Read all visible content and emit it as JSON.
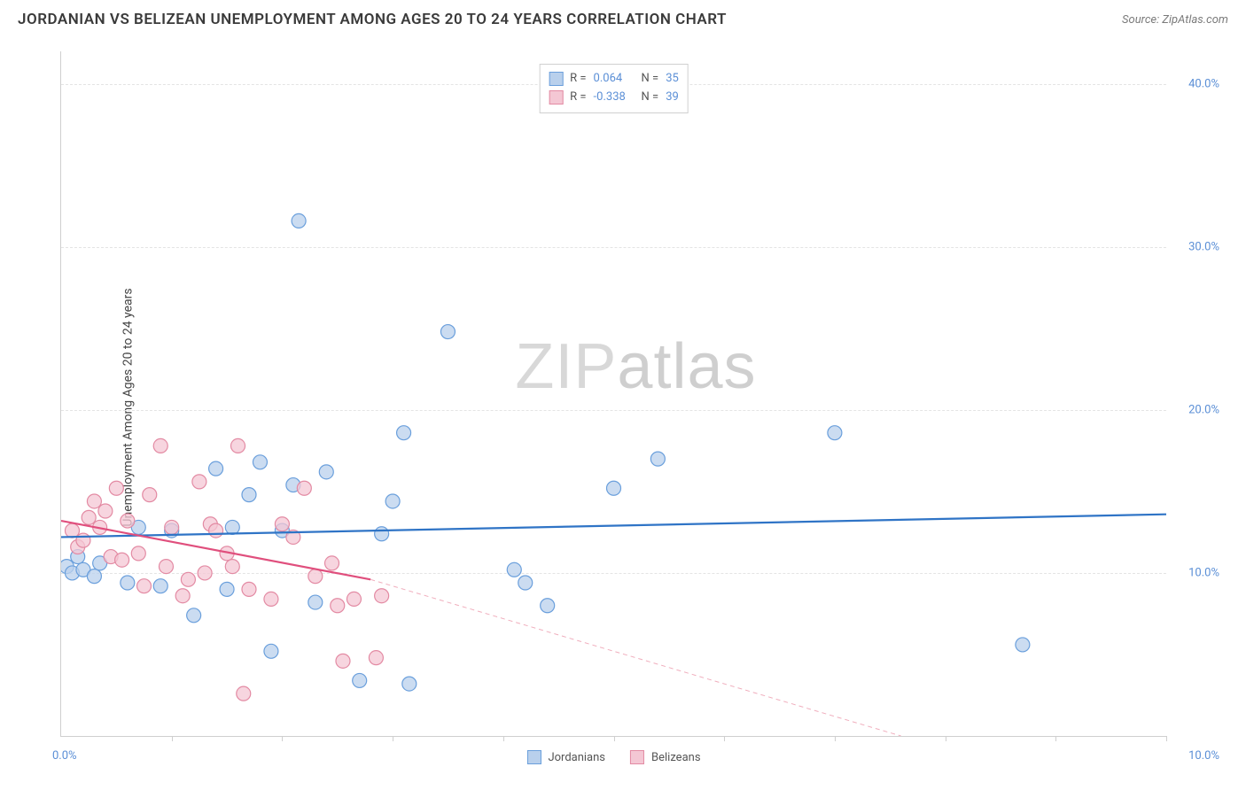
{
  "header": {
    "title": "JORDANIAN VS BELIZEAN UNEMPLOYMENT AMONG AGES 20 TO 24 YEARS CORRELATION CHART",
    "source": "Source: ZipAtlas.com"
  },
  "chart": {
    "type": "scatter",
    "ylabel": "Unemployment Among Ages 20 to 24 years",
    "watermark": "ZIPatlas",
    "xlim": [
      0,
      10
    ],
    "ylim": [
      0,
      42
    ],
    "x_tick_positions": [
      0,
      1,
      2,
      3,
      4,
      5,
      6,
      7,
      8,
      9,
      10
    ],
    "x_tick_labels_shown": {
      "0": "0.0%",
      "10": "10.0%"
    },
    "y_grid_positions": [
      10,
      20,
      30,
      40
    ],
    "y_tick_labels": {
      "10": "10.0%",
      "20": "20.0%",
      "30": "30.0%",
      "40": "40.0%"
    },
    "background_color": "#ffffff",
    "grid_color": "#e4e4e4",
    "axis_color": "#cfcfcf",
    "marker_radius": 8,
    "marker_stroke_width": 1.2,
    "series": [
      {
        "name": "Jordanians",
        "fill_color": "#b9d0ec",
        "stroke_color": "#6a9fdc",
        "swatch_fill": "#b9d0ec",
        "swatch_border": "#6a9fdc",
        "correlation_r": "0.064",
        "correlation_n": "35",
        "regression": {
          "x1": 0,
          "y1": 12.2,
          "x2": 10,
          "y2": 13.6,
          "color": "#2f74c6",
          "width": 2.2,
          "dash": "none"
        },
        "points": [
          [
            0.05,
            10.4
          ],
          [
            0.1,
            10.0
          ],
          [
            0.15,
            11.0
          ],
          [
            0.2,
            10.2
          ],
          [
            0.3,
            9.8
          ],
          [
            0.35,
            10.6
          ],
          [
            0.6,
            9.4
          ],
          [
            0.7,
            12.8
          ],
          [
            0.9,
            9.2
          ],
          [
            1.0,
            12.6
          ],
          [
            1.2,
            7.4
          ],
          [
            1.4,
            16.4
          ],
          [
            1.5,
            9.0
          ],
          [
            1.55,
            12.8
          ],
          [
            1.7,
            14.8
          ],
          [
            1.8,
            16.8
          ],
          [
            1.9,
            5.2
          ],
          [
            2.0,
            12.6
          ],
          [
            2.1,
            15.4
          ],
          [
            2.15,
            31.6
          ],
          [
            2.3,
            8.2
          ],
          [
            2.4,
            16.2
          ],
          [
            2.7,
            3.4
          ],
          [
            2.9,
            12.4
          ],
          [
            3.0,
            14.4
          ],
          [
            3.1,
            18.6
          ],
          [
            3.15,
            3.2
          ],
          [
            3.5,
            24.8
          ],
          [
            4.1,
            10.2
          ],
          [
            4.2,
            9.4
          ],
          [
            4.4,
            8.0
          ],
          [
            5.0,
            15.2
          ],
          [
            5.4,
            17.0
          ],
          [
            7.0,
            18.6
          ],
          [
            8.7,
            5.6
          ]
        ]
      },
      {
        "name": "Belizeans",
        "fill_color": "#f4c7d4",
        "stroke_color": "#e38aa3",
        "swatch_fill": "#f4c7d4",
        "swatch_border": "#e38aa3",
        "correlation_r": "-0.338",
        "correlation_n": "39",
        "regression_solid": {
          "x1": 0,
          "y1": 13.2,
          "x2": 2.8,
          "y2": 9.6,
          "color": "#e04f7d",
          "width": 2.2
        },
        "regression_dash": {
          "x1": 2.8,
          "y1": 9.6,
          "x2": 7.6,
          "y2": 0.0,
          "color": "#f0aebd",
          "width": 1,
          "dash": "5,4"
        },
        "points": [
          [
            0.1,
            12.6
          ],
          [
            0.15,
            11.6
          ],
          [
            0.2,
            12.0
          ],
          [
            0.25,
            13.4
          ],
          [
            0.3,
            14.4
          ],
          [
            0.35,
            12.8
          ],
          [
            0.4,
            13.8
          ],
          [
            0.45,
            11.0
          ],
          [
            0.5,
            15.2
          ],
          [
            0.55,
            10.8
          ],
          [
            0.6,
            13.2
          ],
          [
            0.7,
            11.2
          ],
          [
            0.75,
            9.2
          ],
          [
            0.8,
            14.8
          ],
          [
            0.9,
            17.8
          ],
          [
            0.95,
            10.4
          ],
          [
            1.0,
            12.8
          ],
          [
            1.1,
            8.6
          ],
          [
            1.15,
            9.6
          ],
          [
            1.25,
            15.6
          ],
          [
            1.3,
            10.0
          ],
          [
            1.35,
            13.0
          ],
          [
            1.4,
            12.6
          ],
          [
            1.5,
            11.2
          ],
          [
            1.55,
            10.4
          ],
          [
            1.6,
            17.8
          ],
          [
            1.65,
            2.6
          ],
          [
            1.7,
            9.0
          ],
          [
            1.9,
            8.4
          ],
          [
            2.0,
            13.0
          ],
          [
            2.1,
            12.2
          ],
          [
            2.2,
            15.2
          ],
          [
            2.3,
            9.8
          ],
          [
            2.45,
            10.6
          ],
          [
            2.5,
            8.0
          ],
          [
            2.55,
            4.6
          ],
          [
            2.65,
            8.4
          ],
          [
            2.85,
            4.8
          ],
          [
            2.9,
            8.6
          ]
        ]
      }
    ],
    "stats_legend": {
      "rows": [
        {
          "swatch_fill": "#b9d0ec",
          "swatch_border": "#6a9fdc",
          "r_label": "R =",
          "r_val": "0.064",
          "n_label": "N =",
          "n_val": "35"
        },
        {
          "swatch_fill": "#f4c7d4",
          "swatch_border": "#e38aa3",
          "r_label": "R =",
          "r_val": "-0.338",
          "n_label": "N =",
          "n_val": "39"
        }
      ]
    },
    "bottom_legend": [
      {
        "swatch_fill": "#b9d0ec",
        "swatch_border": "#6a9fdc",
        "label": "Jordanians"
      },
      {
        "swatch_fill": "#f4c7d4",
        "swatch_border": "#e38aa3",
        "label": "Belizeans"
      }
    ]
  }
}
